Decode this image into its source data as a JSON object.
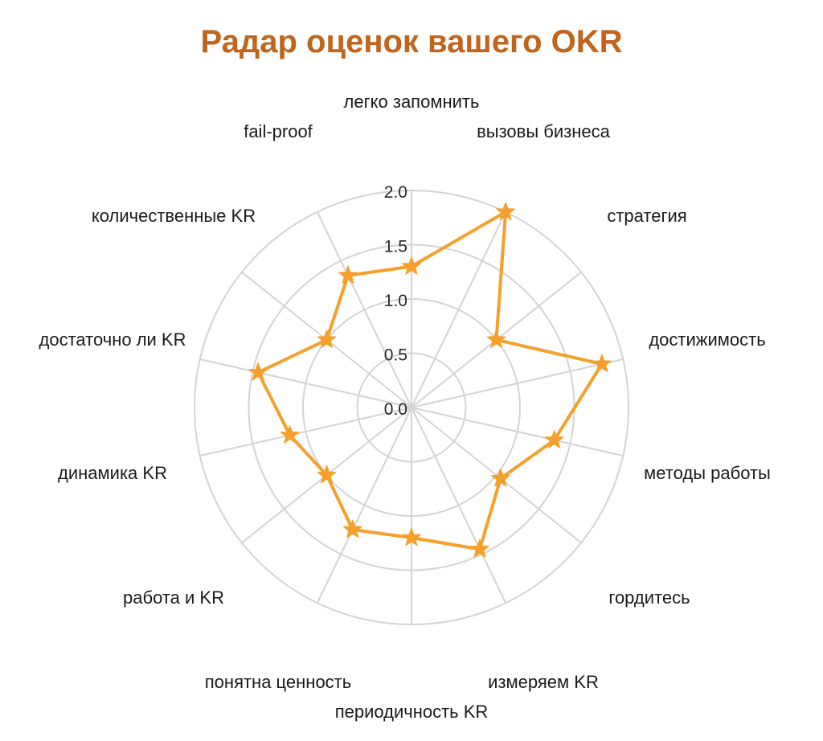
{
  "chart_data": {
    "type": "radar",
    "title": "Радар оценок вашего OKR",
    "title_color": "#c0651b",
    "series_color": "#f5a02a",
    "grid_color": "#d4d4d4",
    "marker": "star",
    "grid": true,
    "rlim": [
      0,
      2.0
    ],
    "ticks": [
      "0.0",
      "0.5",
      "1.0",
      "1.5",
      "2.0"
    ],
    "categories": [
      "легко запомнить",
      "вызовы бизнеса",
      "стратегия",
      "достижимость",
      "методы работы",
      "гордитесь",
      "измеряем KR",
      "периодичность KR",
      "понятна ценность",
      "работа и KR",
      "динамика KR",
      "достаточно ли KR",
      "количественные KR",
      "fail-proof"
    ],
    "values": [
      1.3,
      2.0,
      1.0,
      1.8,
      1.35,
      1.05,
      1.45,
      1.2,
      1.25,
      1.0,
      1.15,
      1.45,
      1.0,
      1.35
    ]
  }
}
